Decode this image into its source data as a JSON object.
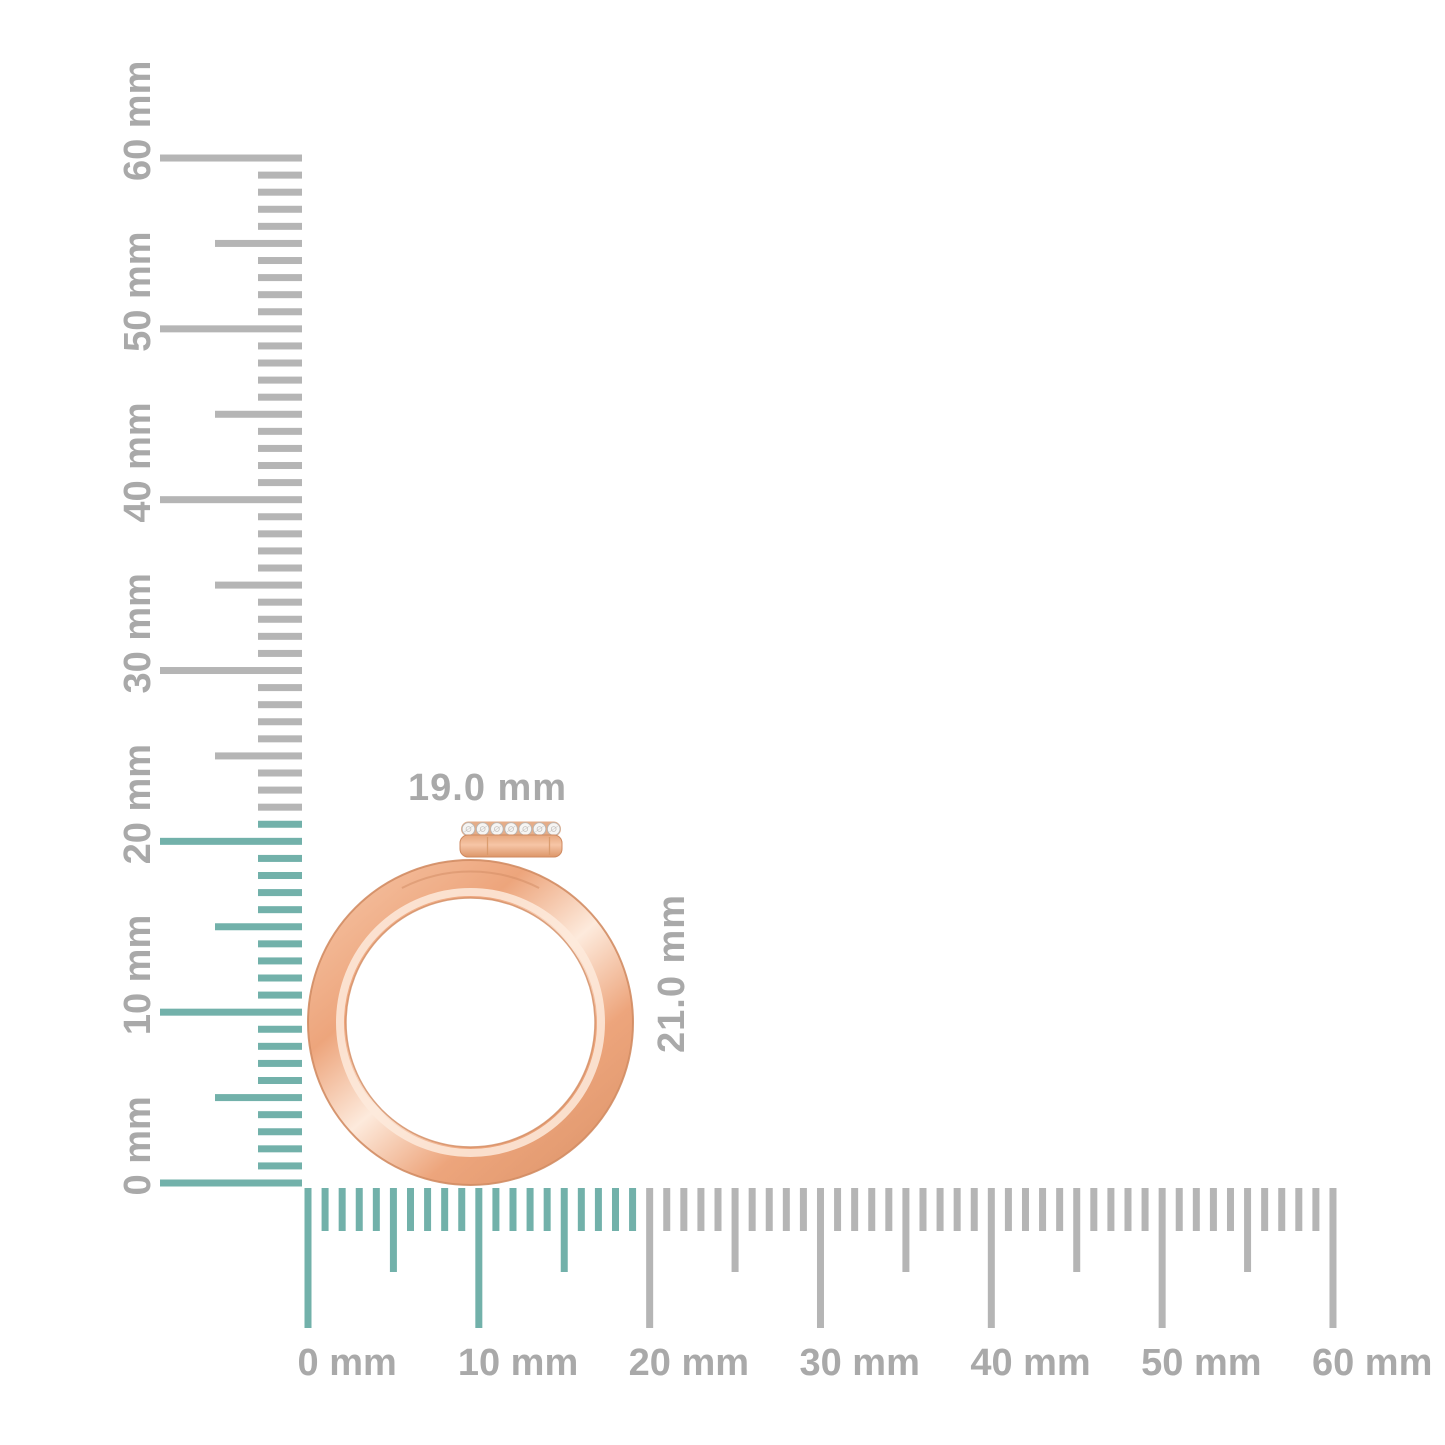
{
  "canvas": {
    "background": "#ffffff"
  },
  "measurements": {
    "width_label": "19.0 mm",
    "height_label": "21.0 mm"
  },
  "rulers": {
    "unit": "mm",
    "vertical": {
      "min_mm": 0,
      "max_mm": 60,
      "minor_step_mm": 1,
      "half_step_mm": 5,
      "major_step_mm": 10,
      "labels": [
        "0 mm",
        "10 mm",
        "20 mm",
        "30 mm",
        "40 mm",
        "50 mm",
        "60 mm"
      ],
      "highlight_through_mm": 21
    },
    "horizontal": {
      "min_mm": 0,
      "max_mm": 60,
      "minor_step_mm": 1,
      "half_step_mm": 5,
      "major_step_mm": 10,
      "labels": [
        "0 mm",
        "10 mm",
        "20 mm",
        "30 mm",
        "40 mm",
        "50 mm",
        "60 mm"
      ],
      "highlight_through_mm": 19
    }
  },
  "ring": {
    "diamond_count": 7
  },
  "colors": {
    "highlight_tick": "#72b1aa",
    "default_tick": "#b5b5b5",
    "label_text": "#a9a9a9",
    "band_dark": "#d28c63",
    "band_mid": "#eda57c",
    "band_deep": "#e29a70",
    "band_light": "#f5c2a2",
    "band_highlight": "#fdeadc",
    "disc_top": "#e7a87e",
    "disc_mid": "#f6c5a6",
    "disc_bottom": "#dd9669",
    "disc_strip": "#e5ad88",
    "disc_edge": "#cf8a60",
    "seam": "#d89868",
    "diamond_fill": "#f6f5f3",
    "diamond_edge": "#b9b5b2",
    "diamond_facet": "#c4c0bd"
  }
}
